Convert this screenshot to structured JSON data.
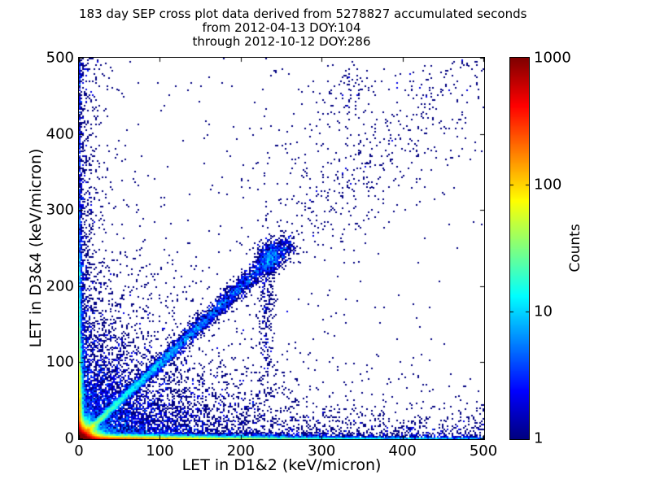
{
  "figure": {
    "title_lines": [
      "183 day SEP cross plot data derived from 5278827 accumulated seconds",
      "from 2012-04-13 DOY:104",
      "through 2012-10-12 DOY:286"
    ]
  },
  "chart_data": {
    "type": "scatter",
    "subtype": "2d-density-cross-plot",
    "title": "183 day SEP cross plot data derived from 5278827 accumulated seconds from 2012-04-13 DOY:104 through 2012-10-12 DOY:286",
    "xlabel": "LET in D1&2 (keV/micron)",
    "ylabel": "LET in D3&4 (keV/micron)",
    "xlim": [
      0,
      500
    ],
    "ylim": [
      0,
      500
    ],
    "xticks": [
      0,
      100,
      200,
      300,
      400,
      500
    ],
    "yticks": [
      0,
      100,
      200,
      300,
      400,
      500
    ],
    "grid": false,
    "marker_single_count_color": "#000080",
    "colorbar": {
      "label": "Counts",
      "scale": "log",
      "min": 1,
      "max": 1000,
      "ticks": [
        1,
        10,
        100,
        1000
      ],
      "colormap": "jet"
    },
    "distribution_notes": [
      "very dense hot core (counts ~1000, red/orange/yellow) at origin below ~20 keV/micron in both detectors",
      "bright diagonal proton band y=x from origin (cyan/green) fading to blue near (250,250), with a denser clump near (236,238) and sparse continuation toward (500,500)",
      "dense horizontal band along y~0 spanning full x range: orange/yellow to x~60, green/cyan to ~150, navy blue beyond to 500",
      "dense vertical band along x~0: warm below y~15, blue speckle continuing up past y~300, sparse to 500",
      "diffuse single-count (navy) scatter filling the lower-left triangle, sparse isolated points elsewhere",
      "loose vertical/diagonal enhancement around x~230-340 between y~150 and y~480"
    ],
    "seed": 20121012,
    "point_cloud_model": {
      "components": [
        {
          "name": "origin-core",
          "shape": "exp2d",
          "n": 50000,
          "lx": 6,
          "ly": 5
        },
        {
          "name": "horizontal-band",
          "shape": "band_x",
          "n": 20000,
          "x_exp": 90,
          "y_exp": 1.6
        },
        {
          "name": "horizontal-band-far",
          "shape": "band_x_uniform",
          "n": 1200,
          "y_exp": 1.0
        },
        {
          "name": "bottom-scatter",
          "shape": "band_x_uniform",
          "n": 1200,
          "y_exp": 16
        },
        {
          "name": "vertical-band",
          "shape": "band_y",
          "n": 9000,
          "y_exp": 60,
          "x_exp": 1.6
        },
        {
          "name": "vertical-band-far",
          "shape": "band_y_uniform",
          "n": 400,
          "x_exp": 1.2
        },
        {
          "name": "left-scatter",
          "shape": "band_y_uniform",
          "n": 800,
          "x_exp": 12
        },
        {
          "name": "main-diagonal",
          "shape": "diagonal",
          "n": 9000,
          "s_max": 260,
          "u_pow": 2.4,
          "sigma0": 1.5,
          "sigma_slope": 0.02
        },
        {
          "name": "diagonal-clump",
          "shape": "gauss",
          "n": 450,
          "cx": 236,
          "cy": 238,
          "sx": 8,
          "sy": 10
        },
        {
          "name": "clump-tail-down",
          "shape": "gauss",
          "n": 260,
          "cx": 232,
          "cy": 170,
          "sx": 5,
          "sy": 50
        },
        {
          "name": "upper-diagonal-sparse",
          "shape": "diag_range",
          "n": 420,
          "s_min": 250,
          "s_max": 500,
          "sigma": 28
        },
        {
          "name": "lower-left-cloud",
          "shape": "exp2d",
          "n": 6500,
          "lx": 70,
          "ly": 55
        },
        {
          "name": "mid-upper-swath",
          "shape": "gauss",
          "n": 170,
          "cx": 300,
          "cy": 390,
          "sx": 55,
          "sy": 60
        },
        {
          "name": "upper-streak",
          "shape": "gauss",
          "n": 60,
          "cx": 335,
          "cy": 460,
          "sx": 12,
          "sy": 22
        },
        {
          "name": "uniform-sparse",
          "shape": "uniform",
          "n": 260
        }
      ]
    }
  }
}
